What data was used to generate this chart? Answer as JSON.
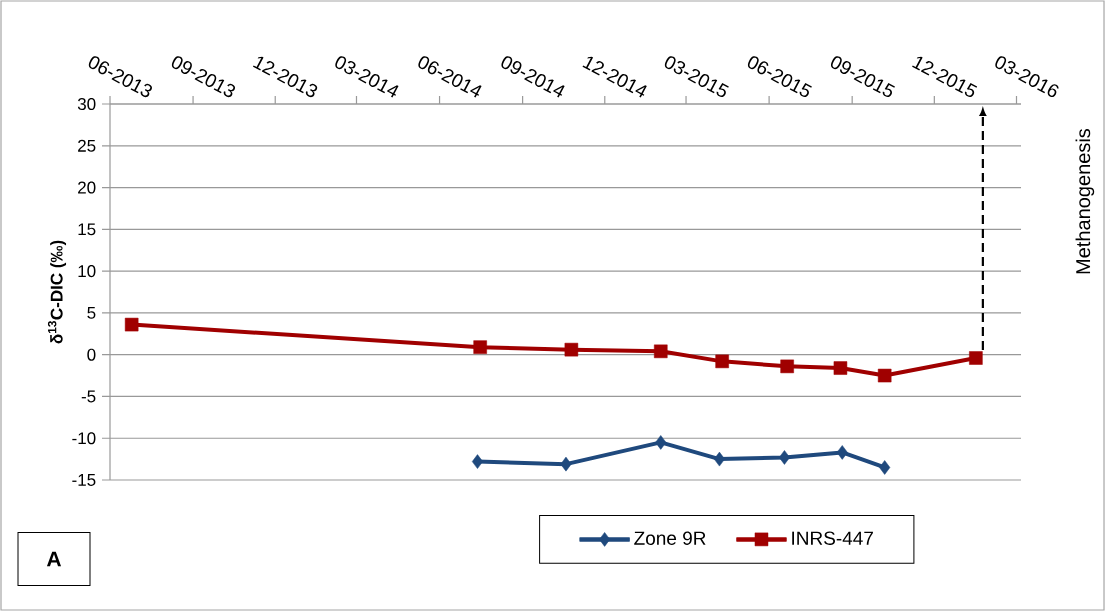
{
  "chart_data": {
    "type": "line",
    "ylabel": "δ$^{13}$C-DIC (‰)",
    "x": [
      "2014-07-13",
      "2014-10-19",
      "2015-02-01",
      "2015-04-07",
      "2015-06-18",
      "2015-08-21",
      "2015-10-07"
    ],
    "series": [
      {
        "name": "Zone 9R",
        "color": "#1f497d",
        "marker": "diamond",
        "values": [
          -12.8,
          -13.1,
          -10.5,
          -12.5,
          -12.3,
          -11.7,
          -13.5
        ]
      },
      {
        "name": "INRS-447",
        "color": "#a00000",
        "marker": "square",
        "x": [
          "2013-06-25",
          "2014-07-16",
          "2014-10-25",
          "2015-02-01",
          "2015-04-10",
          "2015-06-21",
          "2015-08-19",
          "2015-10-07",
          "2016-01-16"
        ],
        "values": [
          3.6,
          0.9,
          0.6,
          0.4,
          -0.8,
          -1.4,
          -1.6,
          -2.5,
          -0.4
        ]
      }
    ],
    "xlim": [
      "2013-06-01",
      "2016-03-06"
    ],
    "xticks": [
      {
        "value": "2013-06-01",
        "label": "06-2013"
      },
      {
        "value": "2013-09-01",
        "label": "09-2013"
      },
      {
        "value": "2013-12-01",
        "label": "12-2013"
      },
      {
        "value": "2014-03-01",
        "label": "03-2014"
      },
      {
        "value": "2014-06-01",
        "label": "06-2014"
      },
      {
        "value": "2014-09-01",
        "label": "09-2014"
      },
      {
        "value": "2014-12-01",
        "label": "12-2014"
      },
      {
        "value": "2015-03-01",
        "label": "03-2015"
      },
      {
        "value": "2015-06-01",
        "label": "06-2015"
      },
      {
        "value": "2015-09-01",
        "label": "09-2015"
      },
      {
        "value": "2015-12-01",
        "label": "12-2015"
      },
      {
        "value": "2016-03-01",
        "label": "03-2016"
      }
    ],
    "ylim": [
      -15,
      30
    ],
    "yticks": [
      -15,
      -10,
      -5,
      0,
      5,
      10,
      15,
      20,
      25,
      30
    ],
    "grid": "y",
    "legend": "bottom",
    "annotations": [
      "Methanogenesis",
      "A"
    ]
  }
}
